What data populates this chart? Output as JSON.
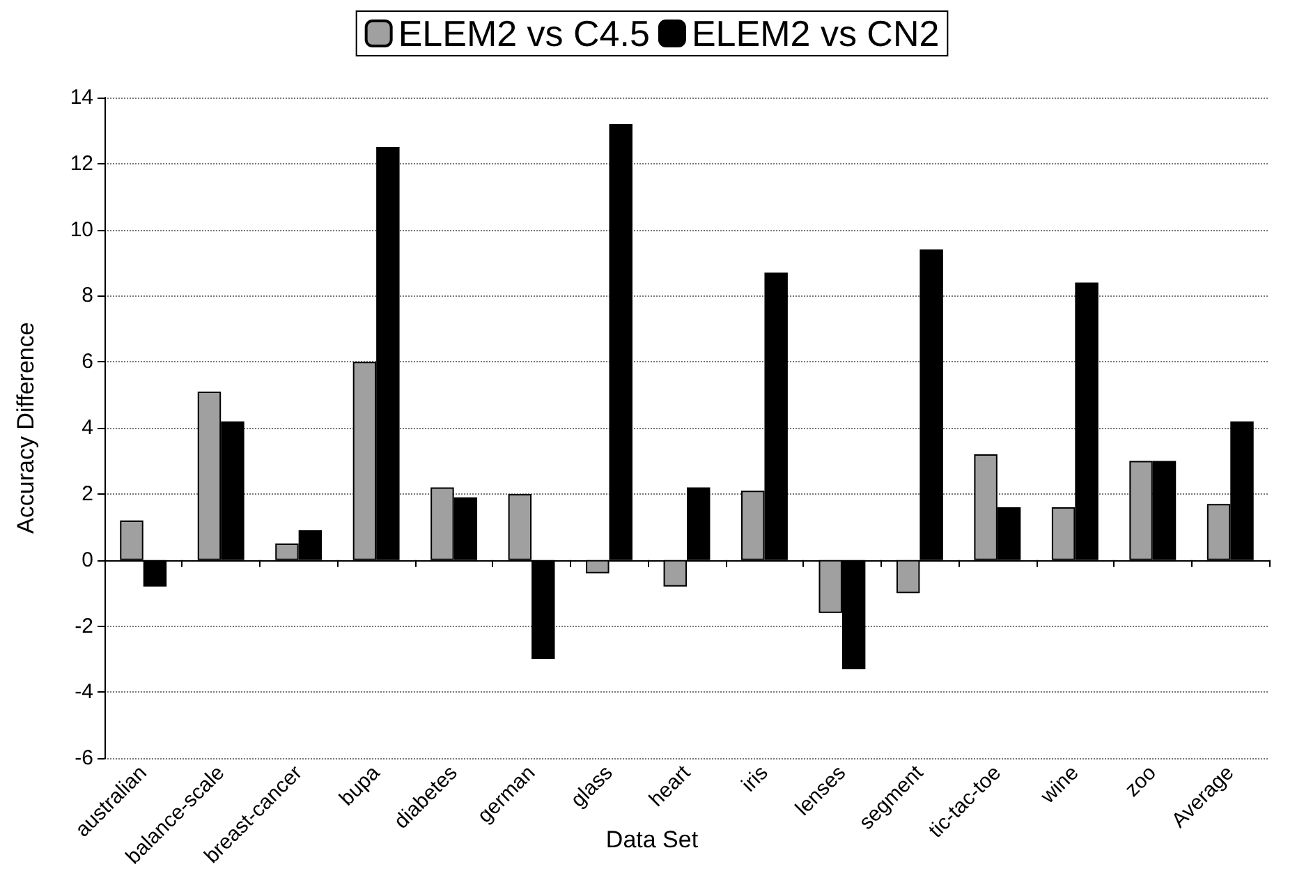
{
  "chart_data": {
    "type": "bar",
    "xlabel": "Data Set",
    "ylabel": "Accuracy Difference",
    "categories": [
      "australian",
      "balance-scale",
      "breast-cancer",
      "bupa",
      "diabetes",
      "german",
      "glass",
      "heart",
      "iris",
      "lenses",
      "segment",
      "tic-tac-toe",
      "wine",
      "zoo",
      "Average"
    ],
    "series": [
      {
        "name": "ELEM2 vs C4.5",
        "color": "#a0a0a0",
        "values": [
          1.2,
          5.1,
          0.5,
          6.0,
          2.2,
          2.0,
          -0.4,
          -0.8,
          2.1,
          -1.6,
          -1.0,
          3.2,
          1.6,
          3.0,
          1.7
        ]
      },
      {
        "name": "ELEM2 vs CN2",
        "color": "#000000",
        "values": [
          -0.8,
          4.2,
          0.9,
          12.5,
          1.9,
          -3.0,
          13.2,
          2.2,
          8.7,
          -3.3,
          9.4,
          1.6,
          8.4,
          3.0,
          4.2
        ]
      }
    ],
    "ylim": [
      -6,
      14
    ],
    "yticks": [
      -6,
      -4,
      -2,
      0,
      2,
      4,
      6,
      8,
      10,
      12,
      14
    ],
    "grid": "y",
    "legend": "top"
  }
}
